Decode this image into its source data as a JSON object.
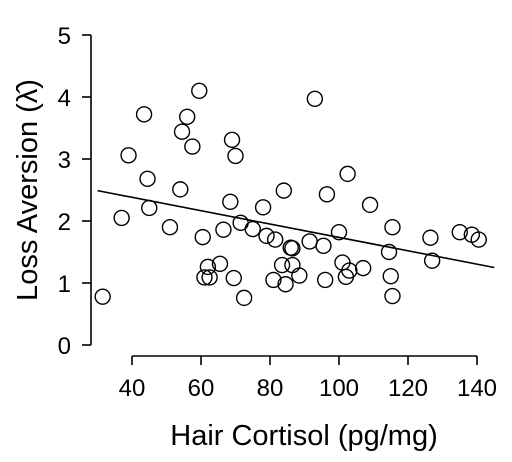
{
  "chart_data": {
    "type": "scatter",
    "xlabel": "Hair Cortisol (pg/mg)",
    "ylabel": "Loss Aversion (λ̂)",
    "xlim": [
      30,
      145
    ],
    "ylim": [
      0,
      5
    ],
    "xticks": [
      40,
      60,
      80,
      100,
      120,
      140
    ],
    "yticks": [
      0,
      1,
      2,
      3,
      4,
      5
    ],
    "grid": false,
    "trendline": {
      "x": [
        30,
        145
      ],
      "y": [
        2.49,
        1.25
      ]
    },
    "points": [
      {
        "x": 31.5,
        "y": 0.78
      },
      {
        "x": 37,
        "y": 2.05
      },
      {
        "x": 39,
        "y": 3.06
      },
      {
        "x": 43.5,
        "y": 3.72
      },
      {
        "x": 44.5,
        "y": 2.68
      },
      {
        "x": 45,
        "y": 2.21
      },
      {
        "x": 51,
        "y": 1.9
      },
      {
        "x": 54,
        "y": 2.51
      },
      {
        "x": 54.5,
        "y": 3.44
      },
      {
        "x": 56,
        "y": 3.68
      },
      {
        "x": 57.5,
        "y": 3.2
      },
      {
        "x": 59.5,
        "y": 4.1
      },
      {
        "x": 60.5,
        "y": 1.74
      },
      {
        "x": 61,
        "y": 1.09
      },
      {
        "x": 62,
        "y": 1.26
      },
      {
        "x": 62.5,
        "y": 1.09
      },
      {
        "x": 65.5,
        "y": 1.31
      },
      {
        "x": 66.5,
        "y": 1.86
      },
      {
        "x": 68.5,
        "y": 2.31
      },
      {
        "x": 69,
        "y": 3.31
      },
      {
        "x": 69.5,
        "y": 1.08
      },
      {
        "x": 70,
        "y": 3.05
      },
      {
        "x": 71.5,
        "y": 1.97
      },
      {
        "x": 72.5,
        "y": 0.76
      },
      {
        "x": 75,
        "y": 1.87
      },
      {
        "x": 78,
        "y": 2.22
      },
      {
        "x": 79,
        "y": 1.76
      },
      {
        "x": 81,
        "y": 1.05
      },
      {
        "x": 81.5,
        "y": 1.7
      },
      {
        "x": 83.5,
        "y": 1.29
      },
      {
        "x": 84,
        "y": 2.49
      },
      {
        "x": 84.5,
        "y": 0.98
      },
      {
        "x": 86,
        "y": 1.57
      },
      {
        "x": 86.5,
        "y": 1.29
      },
      {
        "x": 86.5,
        "y": 1.56
      },
      {
        "x": 88.5,
        "y": 1.12
      },
      {
        "x": 91.5,
        "y": 1.67
      },
      {
        "x": 93,
        "y": 3.97
      },
      {
        "x": 95.5,
        "y": 1.6
      },
      {
        "x": 96,
        "y": 1.05
      },
      {
        "x": 96.5,
        "y": 2.43
      },
      {
        "x": 100,
        "y": 1.82
      },
      {
        "x": 101,
        "y": 1.33
      },
      {
        "x": 102,
        "y": 1.1
      },
      {
        "x": 102.5,
        "y": 2.76
      },
      {
        "x": 103,
        "y": 1.2
      },
      {
        "x": 107,
        "y": 1.24
      },
      {
        "x": 109,
        "y": 2.26
      },
      {
        "x": 114.5,
        "y": 1.5
      },
      {
        "x": 115,
        "y": 1.11
      },
      {
        "x": 115.5,
        "y": 1.9
      },
      {
        "x": 115.5,
        "y": 0.79
      },
      {
        "x": 126.5,
        "y": 1.73
      },
      {
        "x": 127,
        "y": 1.36
      },
      {
        "x": 135,
        "y": 1.82
      },
      {
        "x": 138.5,
        "y": 1.78
      },
      {
        "x": 140.5,
        "y": 1.7
      }
    ]
  }
}
